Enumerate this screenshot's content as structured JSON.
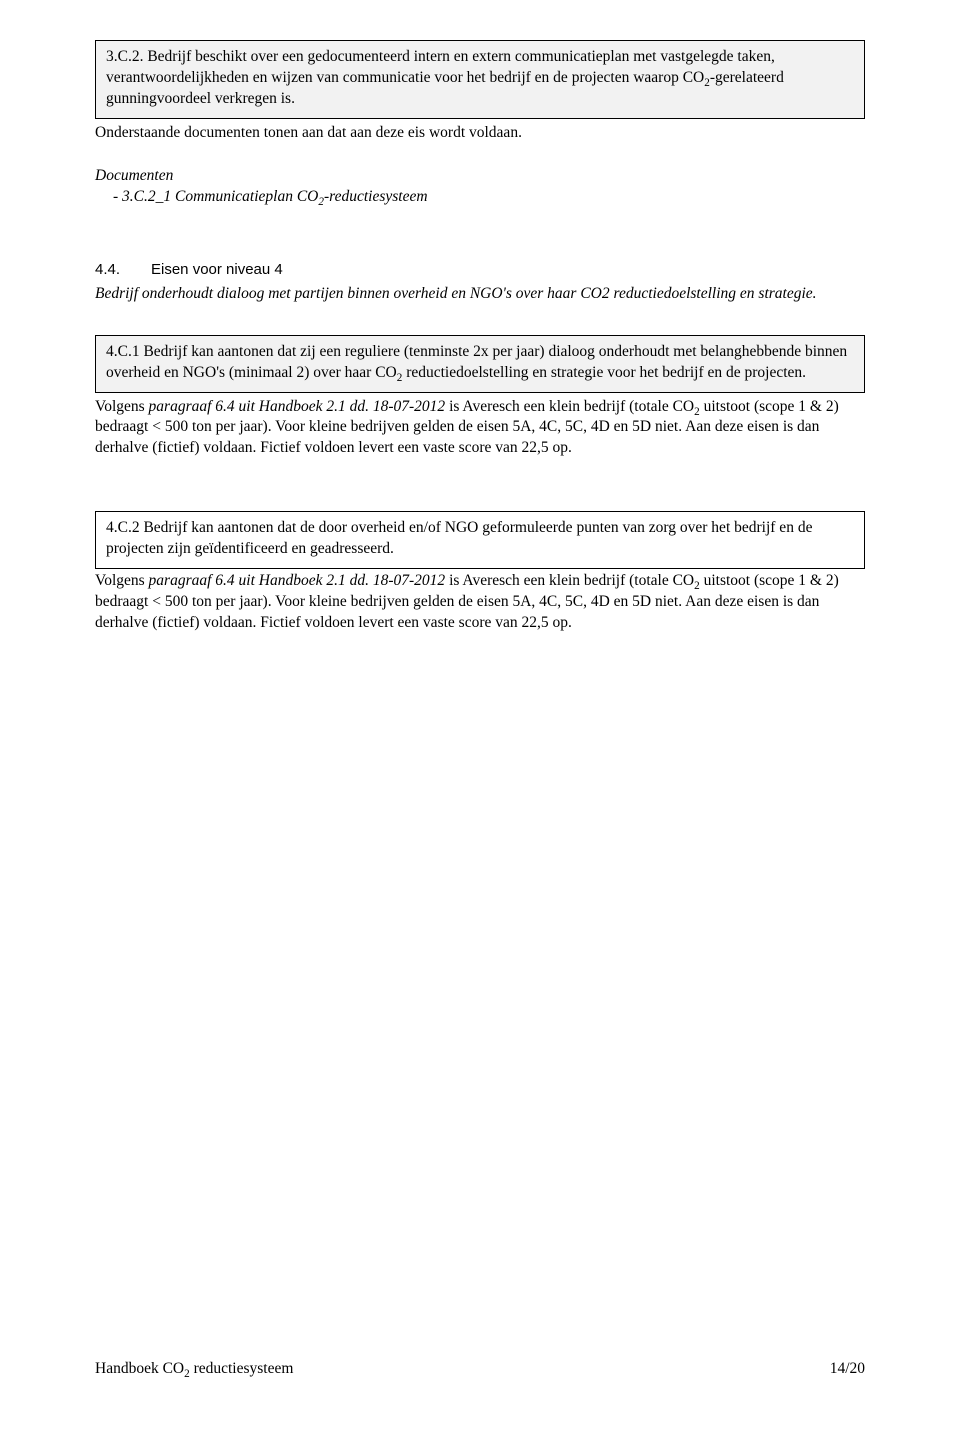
{
  "box1": {
    "text": "3.C.2. Bedrijf beschikt over een gedocumenteerd intern en extern communicatieplan met vastgelegde taken, verantwoordelijkheden en wijzen van communicatie voor het bedrijf en de projecten waarop CO₂-gerelateerd gunningvoordeel verkregen is."
  },
  "para_after_box1": "Onderstaande documenten tonen aan dat aan deze eis wordt voldaan.",
  "documents": {
    "heading": "Documenten",
    "item": "-    3.C.2_1 Communicatieplan CO₂-reductiesysteem"
  },
  "section_44": {
    "num": "4.4.",
    "title": "Eisen voor niveau 4",
    "desc": "Bedrijf onderhoudt dialoog met partijen binnen overheid en NGO's over haar CO2 reductiedoelstelling en strategie."
  },
  "box2": {
    "text": "4.C.1 Bedrijf kan aantonen dat zij een reguliere (tenminste 2x per jaar) dialoog onderhoudt met belanghebbende binnen overheid en NGO's (minimaal 2) over haar CO₂ reductiedoelstelling en strategie voor het bedrijf en de projecten."
  },
  "para_after_box2": {
    "line1_a": "Volgens ",
    "line1_b_italic": "paragraaf 6.4 uit Handboek 2.1 dd. 18-07-2012",
    "line1_c": "  is Averesch een klein bedrijf (totale CO₂ uitstoot (scope 1 & 2) bedraagt < 500 ton per jaar). Voor kleine bedrijven gelden de eisen 5A, 4C, 5C, 4D en 5D niet. Aan deze eisen is dan derhalve (fictief) voldaan. Fictief voldoen levert een vaste score van 22,5 op."
  },
  "box3": {
    "text": "4.C.2 Bedrijf kan aantonen dat de door overheid en/of NGO geformuleerde punten van zorg over het bedrijf en de projecten zijn geïdentificeerd en geadresseerd."
  },
  "para_after_box3": {
    "line1_a": "Volgens ",
    "line1_b_italic": "paragraaf 6.4 uit Handboek 2.1 dd. 18-07-2012",
    "line1_c": "  is Averesch een klein bedrijf (totale CO₂ uitstoot (scope 1 & 2) bedraagt < 500 ton per jaar). Voor kleine bedrijven gelden de eisen 5A, 4C, 5C, 4D en 5D niet. Aan deze eisen is dan derhalve (fictief) voldaan. Fictief voldoen levert een vaste score van 22,5 op."
  },
  "footer": {
    "left": "Handboek CO₂ reductiesysteem",
    "right": "14/20"
  }
}
